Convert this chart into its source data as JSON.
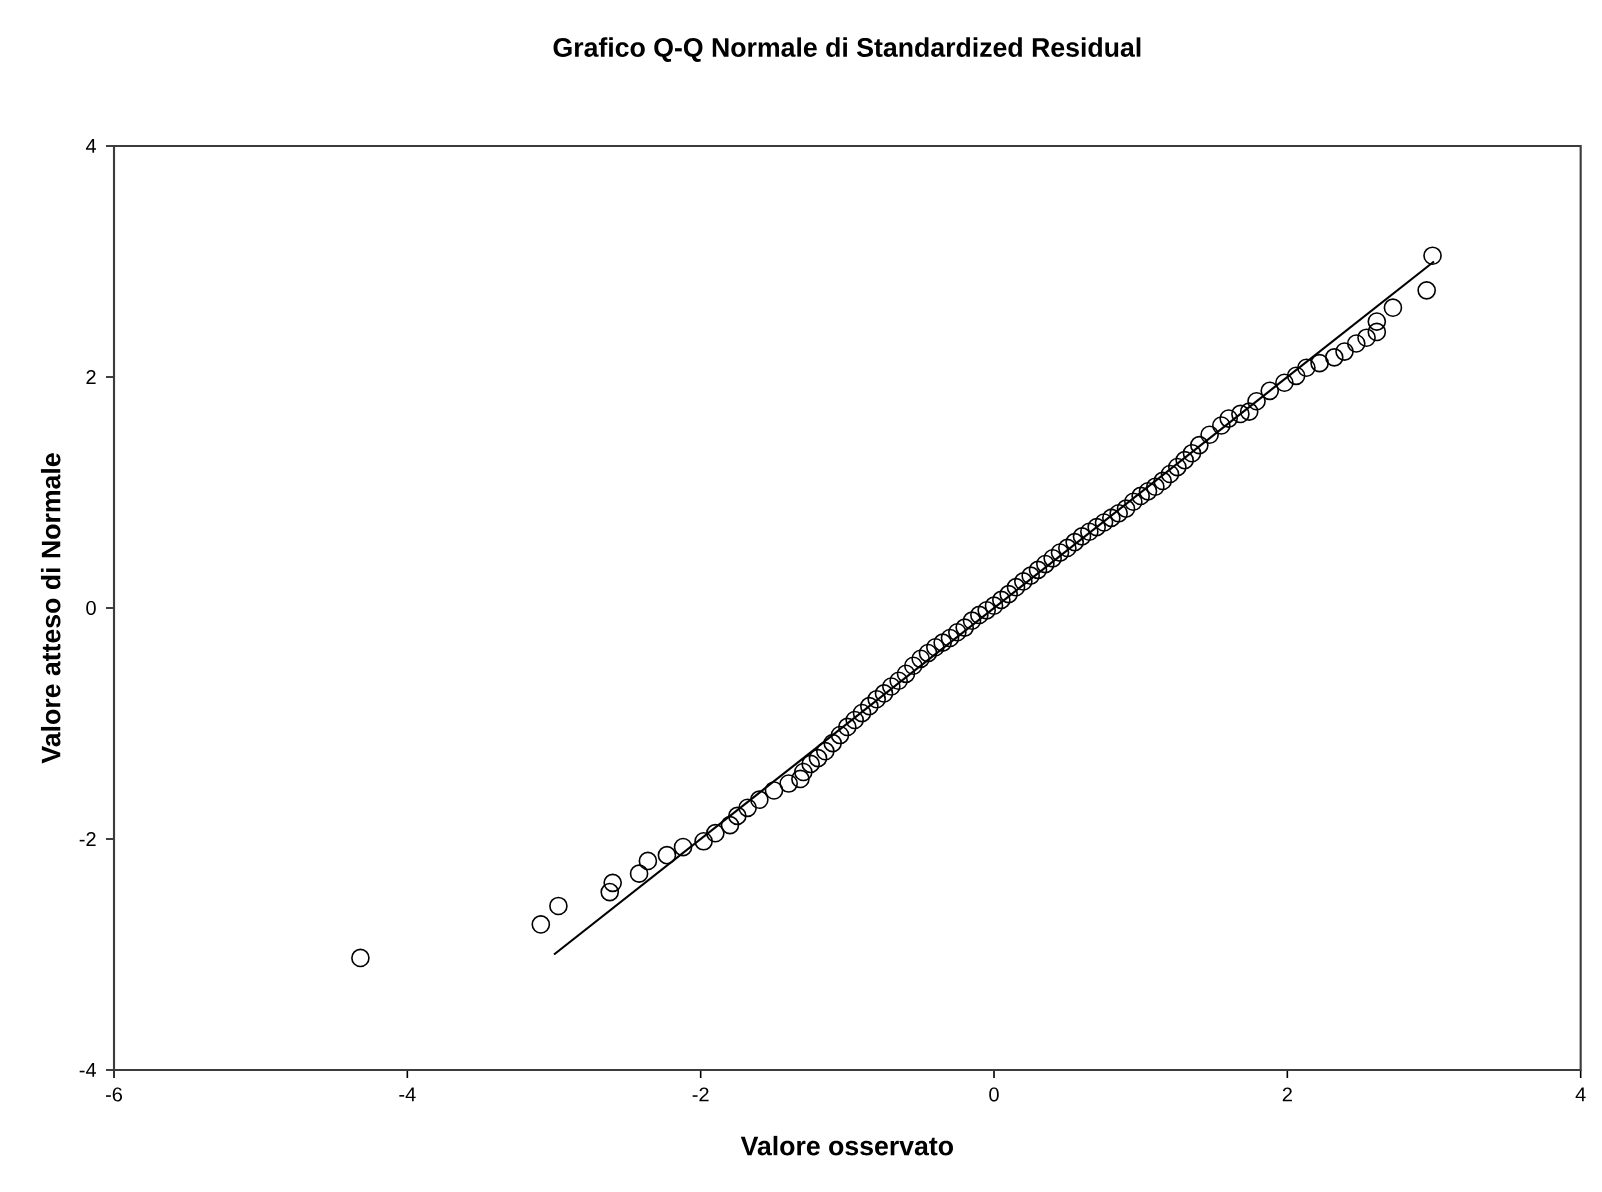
{
  "chart_data": {
    "type": "scatter",
    "title": "Grafico Q-Q Normale di Standardized Residual",
    "xlabel": "Valore osservato",
    "ylabel": "Valore atteso di Normale",
    "xlim": [
      -6,
      4
    ],
    "ylim": [
      -4,
      4
    ],
    "xticks": [
      -6,
      -4,
      -2,
      0,
      2,
      4
    ],
    "yticks": [
      -4,
      -2,
      0,
      2,
      4
    ],
    "marker": "circle",
    "series": [
      {
        "color": "#000000",
        "x": [
          -4.32,
          -3.09,
          -2.97,
          -2.62,
          -2.6,
          -2.42,
          -2.36,
          -2.23,
          -2.12,
          -1.98,
          -1.9,
          -1.8,
          -1.75,
          -1.68,
          -1.6,
          -1.5,
          -1.4,
          -1.32,
          -1.3,
          -1.25,
          -1.2,
          -1.15,
          -1.1,
          -1.05,
          -1.0,
          -0.95,
          -0.9,
          -0.85,
          -0.8,
          -0.75,
          -0.7,
          -0.65,
          -0.6,
          -0.55,
          -0.5,
          -0.45,
          -0.4,
          -0.35,
          -0.3,
          -0.25,
          -0.2,
          -0.15,
          -0.1,
          -0.05,
          0.0,
          0.05,
          0.1,
          0.15,
          0.2,
          0.25,
          0.3,
          0.35,
          0.4,
          0.45,
          0.5,
          0.55,
          0.6,
          0.65,
          0.7,
          0.75,
          0.8,
          0.85,
          0.9,
          0.95,
          1.0,
          1.05,
          1.1,
          1.15,
          1.2,
          1.25,
          1.3,
          1.35,
          1.4,
          1.47,
          1.55,
          1.6,
          1.68,
          1.74,
          1.79,
          1.88,
          1.98,
          2.06,
          2.13,
          2.22,
          2.32,
          2.39,
          2.47,
          2.54,
          2.61,
          2.61,
          2.72,
          2.95,
          2.99
        ],
        "values": [
          -3.03,
          -2.74,
          -2.58,
          -2.46,
          -2.38,
          -2.3,
          -2.19,
          -2.14,
          -2.07,
          -2.02,
          -1.95,
          -1.88,
          -1.8,
          -1.73,
          -1.66,
          -1.58,
          -1.52,
          -1.48,
          -1.42,
          -1.35,
          -1.3,
          -1.24,
          -1.17,
          -1.1,
          -1.03,
          -0.97,
          -0.91,
          -0.85,
          -0.79,
          -0.74,
          -0.68,
          -0.63,
          -0.57,
          -0.5,
          -0.44,
          -0.39,
          -0.34,
          -0.3,
          -0.26,
          -0.21,
          -0.17,
          -0.11,
          -0.06,
          -0.02,
          0.02,
          0.07,
          0.12,
          0.18,
          0.23,
          0.28,
          0.33,
          0.38,
          0.43,
          0.48,
          0.52,
          0.57,
          0.62,
          0.66,
          0.7,
          0.74,
          0.78,
          0.82,
          0.86,
          0.92,
          0.97,
          1.01,
          1.05,
          1.1,
          1.16,
          1.22,
          1.28,
          1.34,
          1.41,
          1.5,
          1.58,
          1.64,
          1.68,
          1.7,
          1.79,
          1.88,
          1.95,
          2.01,
          2.08,
          2.12,
          2.17,
          2.22,
          2.29,
          2.34,
          2.39,
          2.48,
          2.6,
          2.75,
          3.05
        ]
      },
      {
        "type": "line",
        "color": "#000000",
        "marker": "none",
        "line_style": "solid",
        "x": [
          -3,
          3
        ],
        "values": [
          -3,
          3
        ]
      }
    ]
  }
}
